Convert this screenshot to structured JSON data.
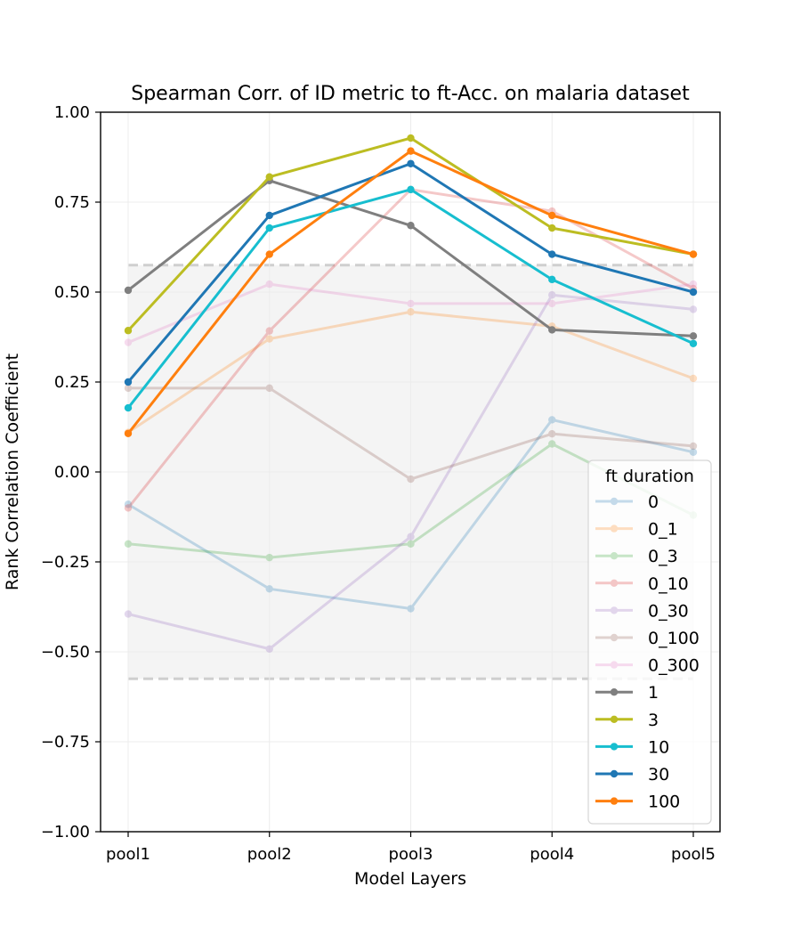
{
  "chart_data": {
    "type": "line",
    "title": "Spearman Corr. of ID metric to ft-Acc. on malaria dataset",
    "xlabel": "Model Layers",
    "ylabel": "Rank Correlation Coefficient",
    "categories": [
      "pool1",
      "pool2",
      "pool3",
      "pool4",
      "pool5"
    ],
    "ylim": [
      -1.0,
      1.0
    ],
    "yticks": [
      "1.00",
      "0.75",
      "0.50",
      "0.25",
      "0.00",
      "−0.25",
      "−0.50",
      "−0.75",
      "−1.00"
    ],
    "ytick_values": [
      1.0,
      0.75,
      0.5,
      0.25,
      0.0,
      -0.25,
      -0.5,
      -0.75,
      -1.0
    ],
    "grid": true,
    "significance_band": [
      -0.575,
      0.575
    ],
    "legend": {
      "title": "ft duration",
      "placement": "lower right"
    },
    "series": [
      {
        "name": "0",
        "color": "#1f77b4",
        "alpha": 0.25,
        "values": [
          -0.09,
          -0.325,
          -0.38,
          0.145,
          0.055
        ]
      },
      {
        "name": "0_1",
        "color": "#ff7f0e",
        "alpha": 0.25,
        "values": [
          0.11,
          0.37,
          0.445,
          0.405,
          0.26
        ]
      },
      {
        "name": "0_3",
        "color": "#2ca02c",
        "alpha": 0.25,
        "values": [
          -0.2,
          -0.238,
          -0.2,
          0.078,
          -0.12
        ]
      },
      {
        "name": "0_10",
        "color": "#d62728",
        "alpha": 0.25,
        "values": [
          -0.1,
          0.392,
          0.785,
          0.725,
          0.51
        ]
      },
      {
        "name": "0_30",
        "color": "#9467bd",
        "alpha": 0.25,
        "values": [
          -0.395,
          -0.492,
          -0.18,
          0.492,
          0.452
        ]
      },
      {
        "name": "0_100",
        "color": "#8c564b",
        "alpha": 0.25,
        "values": [
          0.233,
          0.233,
          -0.02,
          0.106,
          0.072
        ]
      },
      {
        "name": "0_300",
        "color": "#e377c2",
        "alpha": 0.25,
        "values": [
          0.36,
          0.522,
          0.468,
          0.468,
          0.522
        ]
      },
      {
        "name": "1",
        "color": "#7f7f7f",
        "alpha": 1,
        "values": [
          0.505,
          0.81,
          0.685,
          0.395,
          0.378
        ]
      },
      {
        "name": "3",
        "color": "#bcbd22",
        "alpha": 1,
        "values": [
          0.393,
          0.82,
          0.928,
          0.678,
          0.605
        ]
      },
      {
        "name": "10",
        "color": "#17becf",
        "alpha": 1,
        "values": [
          0.178,
          0.678,
          0.785,
          0.535,
          0.357
        ]
      },
      {
        "name": "30",
        "color": "#1f77b4",
        "alpha": 1,
        "values": [
          0.25,
          0.713,
          0.857,
          0.605,
          0.5
        ]
      },
      {
        "name": "100",
        "color": "#ff7f0e",
        "alpha": 1,
        "values": [
          0.107,
          0.605,
          0.892,
          0.713,
          0.605
        ]
      }
    ]
  }
}
